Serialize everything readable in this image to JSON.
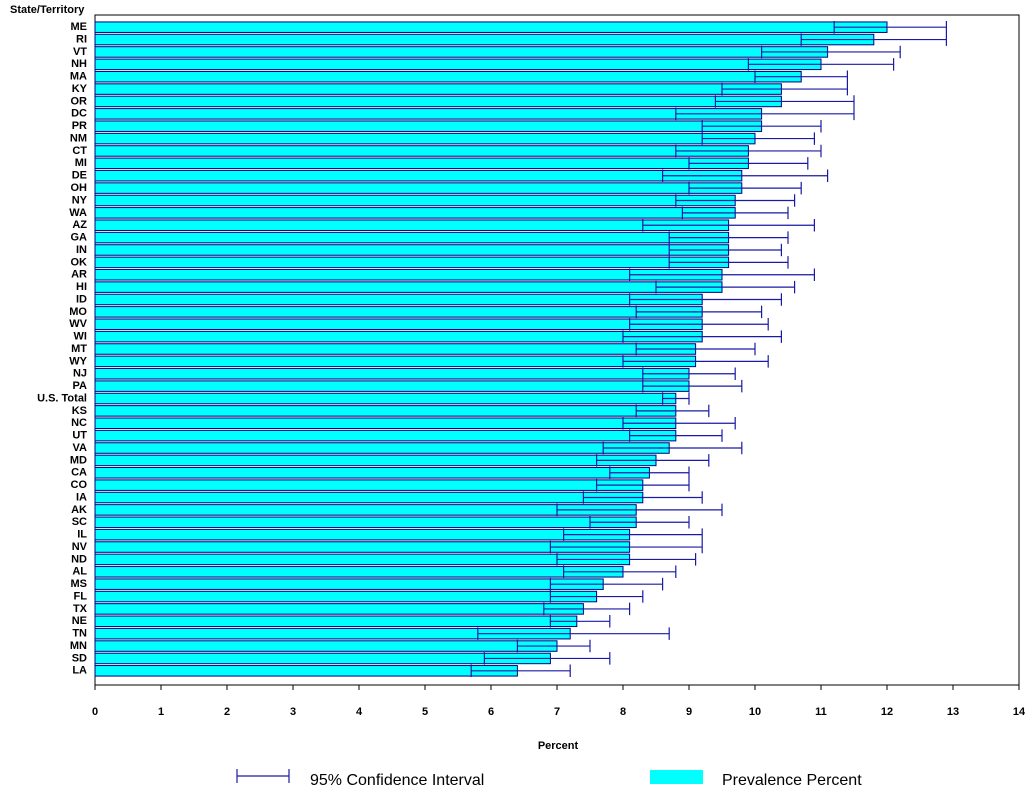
{
  "chart_data": {
    "type": "bar",
    "orientation": "horizontal",
    "y_label": "State/Territory",
    "x_label": "Percent",
    "categories": [
      "ME",
      "RI",
      "VT",
      "NH",
      "MA",
      "KY",
      "OR",
      "DC",
      "PR",
      "NM",
      "CT",
      "MI",
      "DE",
      "OH",
      "NY",
      "WA",
      "AZ",
      "GA",
      "IN",
      "OK",
      "AR",
      "HI",
      "ID",
      "MO",
      "WV",
      "WI",
      "MT",
      "WY",
      "NJ",
      "PA",
      "U.S. Total",
      "KS",
      "NC",
      "UT",
      "VA",
      "MD",
      "CA",
      "CO",
      "IA",
      "AK",
      "SC",
      "IL",
      "NV",
      "ND",
      "AL",
      "MS",
      "FL",
      "TX",
      "NE",
      "TN",
      "MN",
      "SD",
      "LA"
    ],
    "series": [
      {
        "name": "Prevalence Percent",
        "color": "#00ffff",
        "edge": "#000080",
        "values": [
          12.0,
          11.8,
          11.1,
          11.0,
          10.7,
          10.4,
          10.4,
          10.1,
          10.1,
          10.0,
          9.9,
          9.9,
          9.8,
          9.8,
          9.7,
          9.7,
          9.6,
          9.6,
          9.6,
          9.6,
          9.5,
          9.5,
          9.2,
          9.2,
          9.2,
          9.2,
          9.1,
          9.1,
          9.0,
          9.0,
          8.8,
          8.8,
          8.8,
          8.8,
          8.7,
          8.5,
          8.4,
          8.3,
          8.3,
          8.2,
          8.2,
          8.1,
          8.1,
          8.1,
          8.0,
          7.7,
          7.6,
          7.4,
          7.3,
          7.2,
          7.0,
          6.9,
          6.4
        ]
      }
    ],
    "error_bars": {
      "name": "95% Confidence Interval",
      "color": "#1a1aa6",
      "lower": [
        11.2,
        10.7,
        10.1,
        9.9,
        10.0,
        9.5,
        9.4,
        8.8,
        9.2,
        9.2,
        8.8,
        9.0,
        8.6,
        9.0,
        8.8,
        8.9,
        8.3,
        8.7,
        8.7,
        8.7,
        8.1,
        8.5,
        8.1,
        8.2,
        8.1,
        8.0,
        8.2,
        8.0,
        8.3,
        8.3,
        8.6,
        8.2,
        8.0,
        8.1,
        7.7,
        7.6,
        7.8,
        7.6,
        7.4,
        7.0,
        7.5,
        7.1,
        6.9,
        7.0,
        7.1,
        6.9,
        6.9,
        6.8,
        6.9,
        5.8,
        6.4,
        5.9,
        5.7
      ],
      "upper": [
        12.9,
        12.9,
        12.2,
        12.1,
        11.4,
        11.4,
        11.5,
        11.5,
        11.0,
        10.9,
        11.0,
        10.8,
        11.1,
        10.7,
        10.6,
        10.5,
        10.9,
        10.5,
        10.4,
        10.5,
        10.9,
        10.6,
        10.4,
        10.1,
        10.2,
        10.4,
        10.0,
        10.2,
        9.7,
        9.8,
        9.0,
        9.3,
        9.7,
        9.5,
        9.8,
        9.3,
        9.0,
        9.0,
        9.2,
        9.5,
        9.0,
        9.2,
        9.2,
        9.1,
        8.8,
        8.6,
        8.3,
        8.1,
        7.8,
        8.7,
        7.5,
        7.8,
        7.2
      ]
    },
    "xlim": [
      0,
      14
    ],
    "xticks": [
      0,
      1,
      2,
      3,
      4,
      5,
      6,
      7,
      8,
      9,
      10,
      11,
      12,
      13,
      14
    ]
  }
}
